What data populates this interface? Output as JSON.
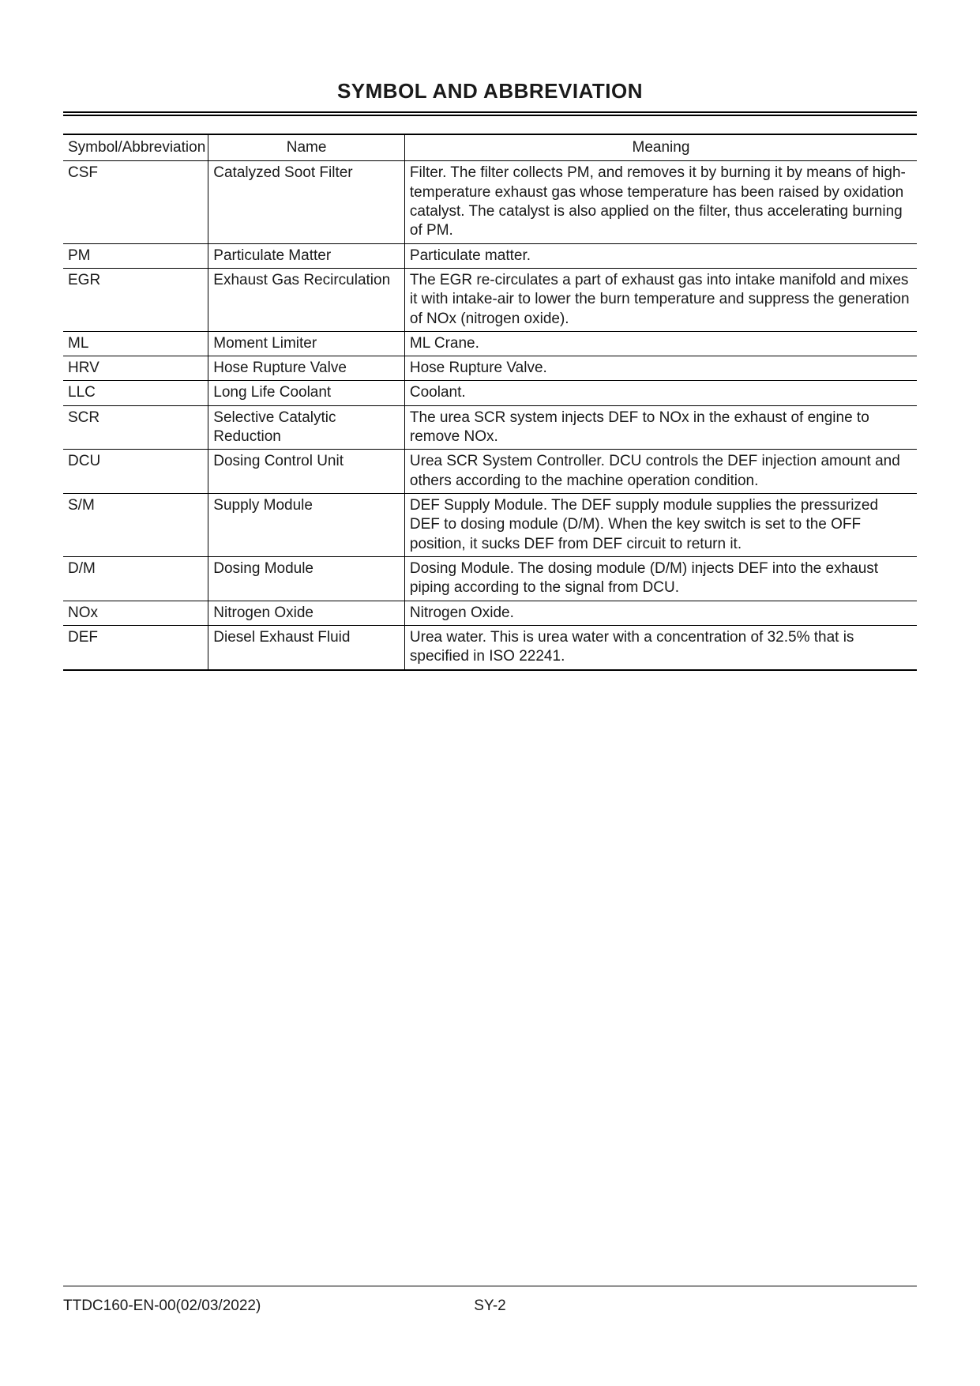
{
  "title": "SYMBOL AND ABBREVIATION",
  "table": {
    "headers": [
      "Symbol/Abbreviation",
      "Name",
      "Meaning"
    ],
    "rows": [
      {
        "sym": "CSF",
        "name": "Catalyzed Soot Filter",
        "mean": "Filter. The filter collects PM, and removes it by burning it by means of high-temperature exhaust gas whose temperature has been raised by oxidation catalyst. The catalyst is also applied on the filter, thus accelerating burning of PM."
      },
      {
        "sym": "PM",
        "name": "Particulate Matter",
        "mean": "Particulate matter."
      },
      {
        "sym": "EGR",
        "name": "Exhaust Gas Recirculation",
        "mean": "The EGR re-circulates a part of exhaust gas into intake manifold and mixes it with intake-air to lower the burn temperature and suppress the generation of NOx (nitrogen oxide)."
      },
      {
        "sym": "ML",
        "name": "Moment Limiter",
        "mean": "ML Crane."
      },
      {
        "sym": "HRV",
        "name": "Hose Rupture Valve",
        "mean": "Hose Rupture Valve."
      },
      {
        "sym": "LLC",
        "name": "Long Life Coolant",
        "mean": "Coolant."
      },
      {
        "sym": "SCR",
        "name": "Selective Catalytic Reduction",
        "mean": "The urea SCR system injects DEF to NOx in the exhaust of engine to remove NOx."
      },
      {
        "sym": "DCU",
        "name": "Dosing Control Unit",
        "mean": "Urea SCR System Controller. DCU controls the DEF injection amount and others according to the machine operation condition."
      },
      {
        "sym": "S/M",
        "name": "Supply Module",
        "mean": "DEF Supply Module. The DEF supply module supplies the pressurized DEF to dosing module (D/M). When the key switch is set to the OFF position, it sucks DEF from DEF circuit to return it."
      },
      {
        "sym": "D/M",
        "name": "Dosing Module",
        "mean": "Dosing Module. The dosing module (D/M) injects DEF into the exhaust piping according to the signal from DCU."
      },
      {
        "sym": "NOx",
        "name": "Nitrogen Oxide",
        "mean": "Nitrogen Oxide."
      },
      {
        "sym": "DEF",
        "name": "Diesel Exhaust Fluid",
        "mean": "Urea water. This is urea water with a concentration of 32.5% that is specified in ISO 22241."
      }
    ]
  },
  "footer": {
    "doc_id": "TTDC160-EN-00(02/03/2022)",
    "page": "SY-2"
  }
}
